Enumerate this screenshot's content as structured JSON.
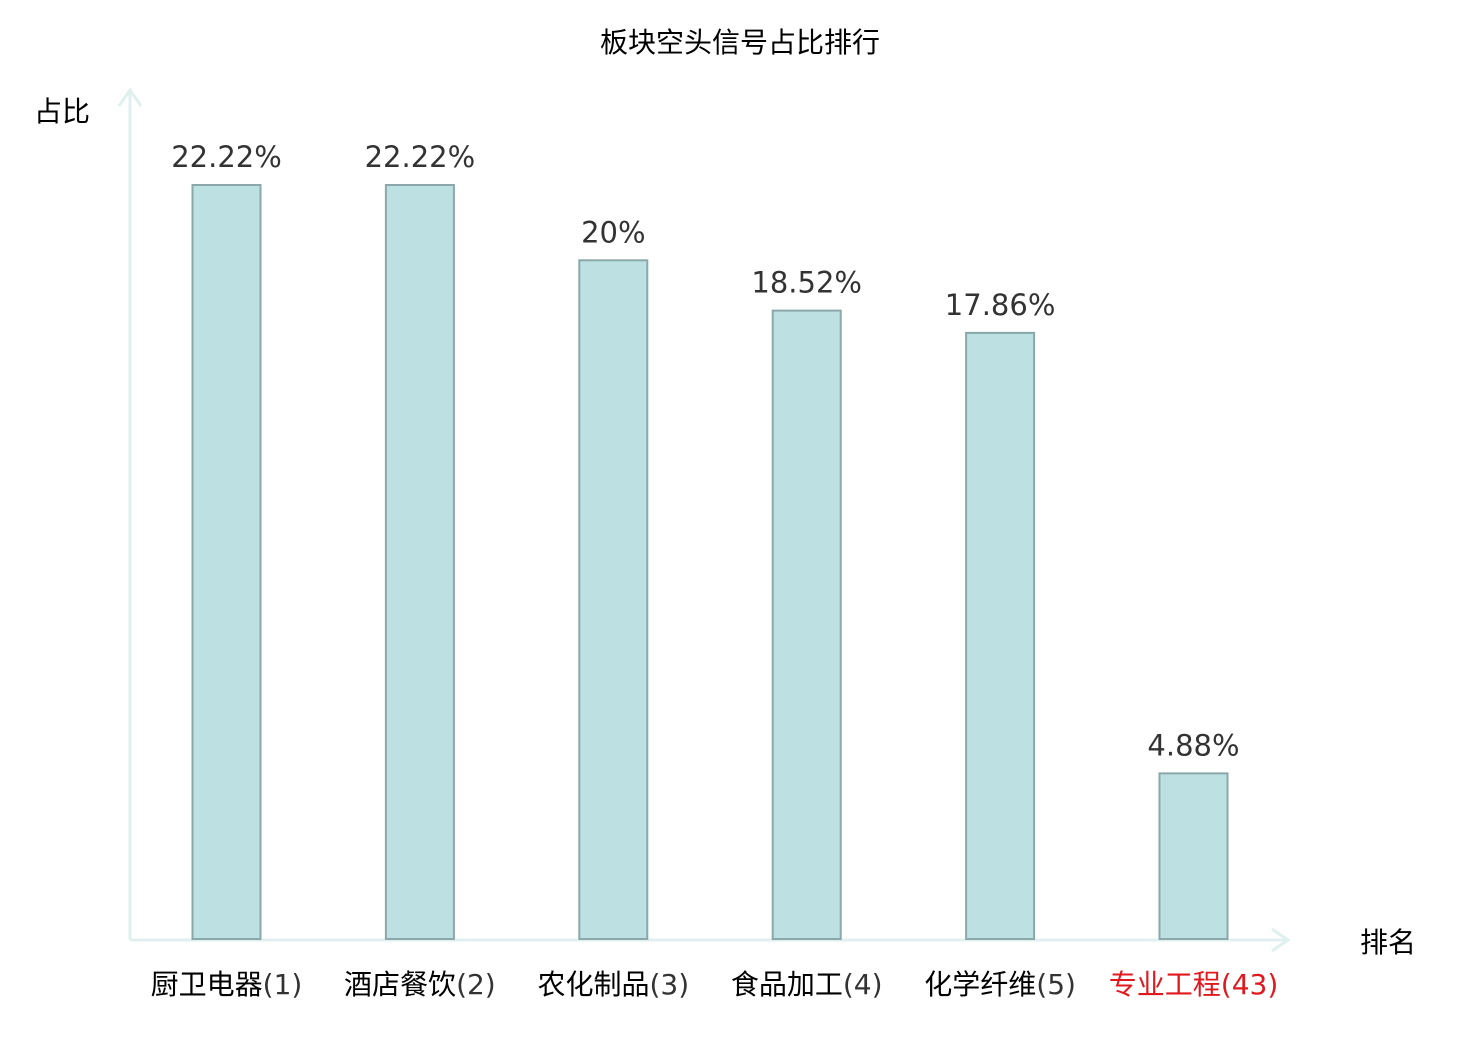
{
  "chart_data": {
    "type": "bar",
    "title": "板块空头信号占比排行",
    "ylabel": "占比",
    "xlabel": "排名",
    "categories": [
      "厨卫电器(1)",
      "酒店餐饮(2)",
      "农化制品(3)",
      "食品加工(4)",
      "化学纤维(5)",
      "专业工程(43)"
    ],
    "category_names": [
      "厨卫电器",
      "酒店餐饮",
      "农化制品",
      "食品加工",
      "化学纤维",
      "专业工程"
    ],
    "category_ranks": [
      "(1)",
      "(2)",
      "(3)",
      "(4)",
      "(5)",
      "(43)"
    ],
    "values": [
      22.22,
      22.22,
      20,
      18.52,
      17.86,
      4.88
    ],
    "value_labels": [
      "22.22%",
      "22.22%",
      "20%",
      "18.52%",
      "17.86%",
      "4.88%"
    ],
    "highlight_index": 5,
    "ylim": [
      0,
      25
    ],
    "grid": false,
    "colors": {
      "bar_fill": "#bde0e2",
      "bar_stroke": "#8aa8aa",
      "axis": "#dff0ee",
      "text": "#000000",
      "value_text": "#333333",
      "highlight_text": "#e0191f"
    }
  }
}
